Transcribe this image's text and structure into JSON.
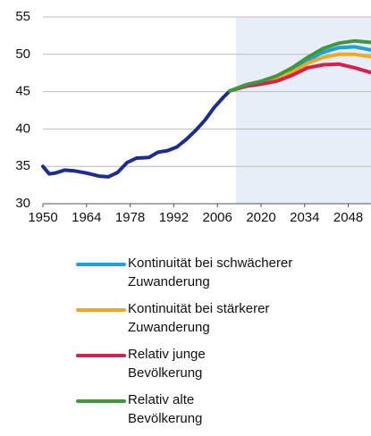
{
  "chart_data": {
    "type": "line",
    "xlim": [
      1950,
      2055
    ],
    "xticks": [
      1950,
      1964,
      1978,
      1992,
      2006,
      2020,
      2034,
      2048
    ],
    "ylim": [
      30,
      55
    ],
    "yticks": [
      30,
      35,
      40,
      45,
      50,
      55
    ],
    "grid": true,
    "shade_from": 2012,
    "shade_color": "#e8eef8",
    "legend": "bottom",
    "series": [
      {
        "color": "#1b2d8f",
        "x": [
          1950,
          1952,
          1954,
          1957,
          1960,
          1964,
          1968,
          1971,
          1974,
          1977,
          1980,
          1984,
          1987,
          1990,
          1993,
          1996,
          1999,
          2002,
          2005,
          2008,
          2010
        ],
        "values": [
          35,
          34,
          34.1,
          34.5,
          34.4,
          34.1,
          33.7,
          33.6,
          34.2,
          35.5,
          36.1,
          36.2,
          36.9,
          37.1,
          37.6,
          38.6,
          39.8,
          41.2,
          42.9,
          44.3,
          45.1
        ]
      },
      {
        "name": "Kontinuität bei schwächerer Zuwanderung",
        "color": "#1fa0dc",
        "x": [
          2010,
          2015,
          2020,
          2025,
          2030,
          2035,
          2040,
          2045,
          2050,
          2055
        ],
        "values": [
          45.1,
          45.8,
          46.3,
          46.9,
          47.9,
          49.2,
          50.3,
          50.9,
          51,
          50.6
        ]
      },
      {
        "name": "Kontinuität bei stärkerer Zuwanderung",
        "color": "#f5a623",
        "x": [
          2010,
          2015,
          2020,
          2025,
          2030,
          2035,
          2040,
          2045,
          2050,
          2055
        ],
        "values": [
          45.1,
          45.8,
          46.2,
          46.8,
          47.6,
          48.8,
          49.6,
          50,
          50,
          49.7
        ]
      },
      {
        "name": "Relativ junge Bevölkerung",
        "color": "#d6204e",
        "x": [
          2010,
          2015,
          2020,
          2025,
          2030,
          2035,
          2040,
          2045,
          2050,
          2055
        ],
        "values": [
          45.1,
          45.7,
          46,
          46.4,
          47.2,
          48.2,
          48.6,
          48.7,
          48.2,
          47.6
        ]
      },
      {
        "name": "Relativ alte Bevölkerung",
        "color": "#3c9a3c",
        "x": [
          2010,
          2015,
          2020,
          2025,
          2030,
          2035,
          2040,
          2045,
          2050,
          2055
        ],
        "values": [
          45.1,
          45.9,
          46.4,
          47.1,
          48.2,
          49.6,
          50.8,
          51.5,
          51.8,
          51.6
        ]
      }
    ]
  }
}
